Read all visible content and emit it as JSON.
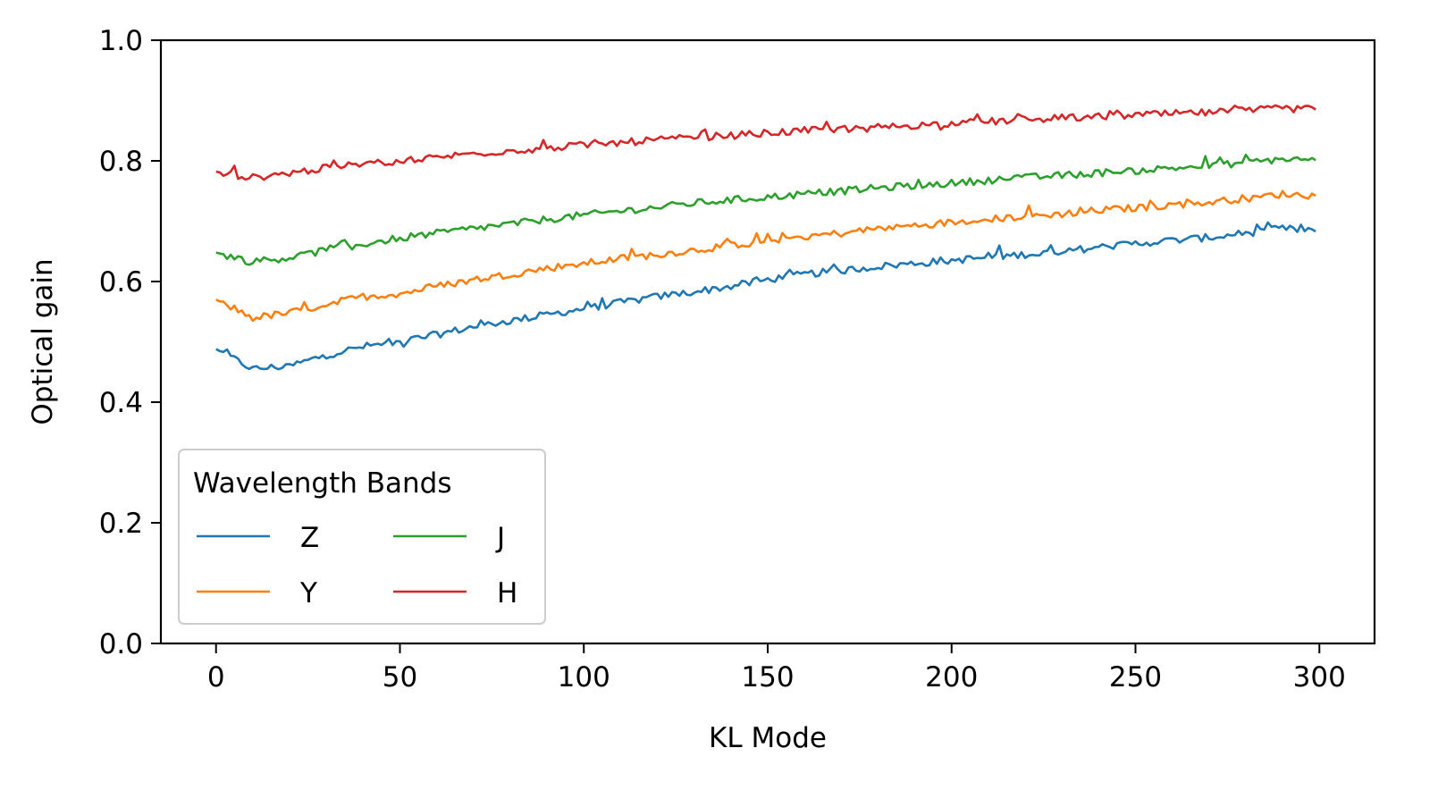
{
  "chart_data": {
    "type": "line",
    "title": "",
    "xlabel": "KL Mode",
    "ylabel": "Optical gain",
    "xlim": [
      -15,
      315
    ],
    "ylim": [
      0.0,
      1.0
    ],
    "xticks": [
      0,
      50,
      100,
      150,
      200,
      250,
      300
    ],
    "xtick_labels": [
      "0",
      "50",
      "100",
      "150",
      "200",
      "250",
      "300"
    ],
    "yticks": [
      0.0,
      0.2,
      0.4,
      0.6,
      0.8,
      1.0
    ],
    "ytick_labels": [
      "0.0",
      "0.2",
      "0.4",
      "0.6",
      "0.8",
      "1.0"
    ],
    "grid": false,
    "x": [
      0,
      10,
      20,
      30,
      40,
      50,
      60,
      70,
      80,
      90,
      100,
      110,
      120,
      130,
      140,
      150,
      160,
      170,
      180,
      190,
      200,
      210,
      220,
      230,
      240,
      250,
      260,
      270,
      280,
      290,
      299
    ],
    "series": [
      {
        "name": "Z",
        "color": "#1f77b4",
        "values": [
          0.488,
          0.455,
          0.46,
          0.478,
          0.492,
          0.5,
          0.512,
          0.525,
          0.535,
          0.545,
          0.555,
          0.565,
          0.575,
          0.583,
          0.592,
          0.603,
          0.612,
          0.618,
          0.625,
          0.63,
          0.635,
          0.64,
          0.645,
          0.65,
          0.657,
          0.663,
          0.668,
          0.673,
          0.68,
          0.688,
          0.683
        ]
      },
      {
        "name": "Y",
        "color": "#ff7f0e",
        "values": [
          0.57,
          0.54,
          0.548,
          0.562,
          0.575,
          0.58,
          0.592,
          0.603,
          0.612,
          0.622,
          0.63,
          0.638,
          0.645,
          0.652,
          0.66,
          0.668,
          0.675,
          0.68,
          0.688,
          0.693,
          0.698,
          0.703,
          0.708,
          0.712,
          0.718,
          0.722,
          0.727,
          0.732,
          0.738,
          0.745,
          0.742
        ]
      },
      {
        "name": "J",
        "color": "#2ca02c",
        "values": [
          0.648,
          0.632,
          0.64,
          0.652,
          0.662,
          0.672,
          0.68,
          0.688,
          0.695,
          0.703,
          0.71,
          0.717,
          0.723,
          0.73,
          0.735,
          0.74,
          0.745,
          0.75,
          0.755,
          0.759,
          0.763,
          0.768,
          0.772,
          0.776,
          0.78,
          0.784,
          0.788,
          0.792,
          0.797,
          0.803,
          0.801
        ]
      },
      {
        "name": "H",
        "color": "#d62728",
        "values": [
          0.782,
          0.772,
          0.78,
          0.788,
          0.795,
          0.8,
          0.806,
          0.812,
          0.817,
          0.821,
          0.826,
          0.83,
          0.835,
          0.838,
          0.842,
          0.846,
          0.85,
          0.853,
          0.856,
          0.859,
          0.862,
          0.865,
          0.868,
          0.871,
          0.873,
          0.876,
          0.878,
          0.88,
          0.883,
          0.887,
          0.885
        ]
      }
    ],
    "legend": {
      "title": "Wavelength Bands",
      "placement": "lower-left",
      "columns": 2
    }
  }
}
